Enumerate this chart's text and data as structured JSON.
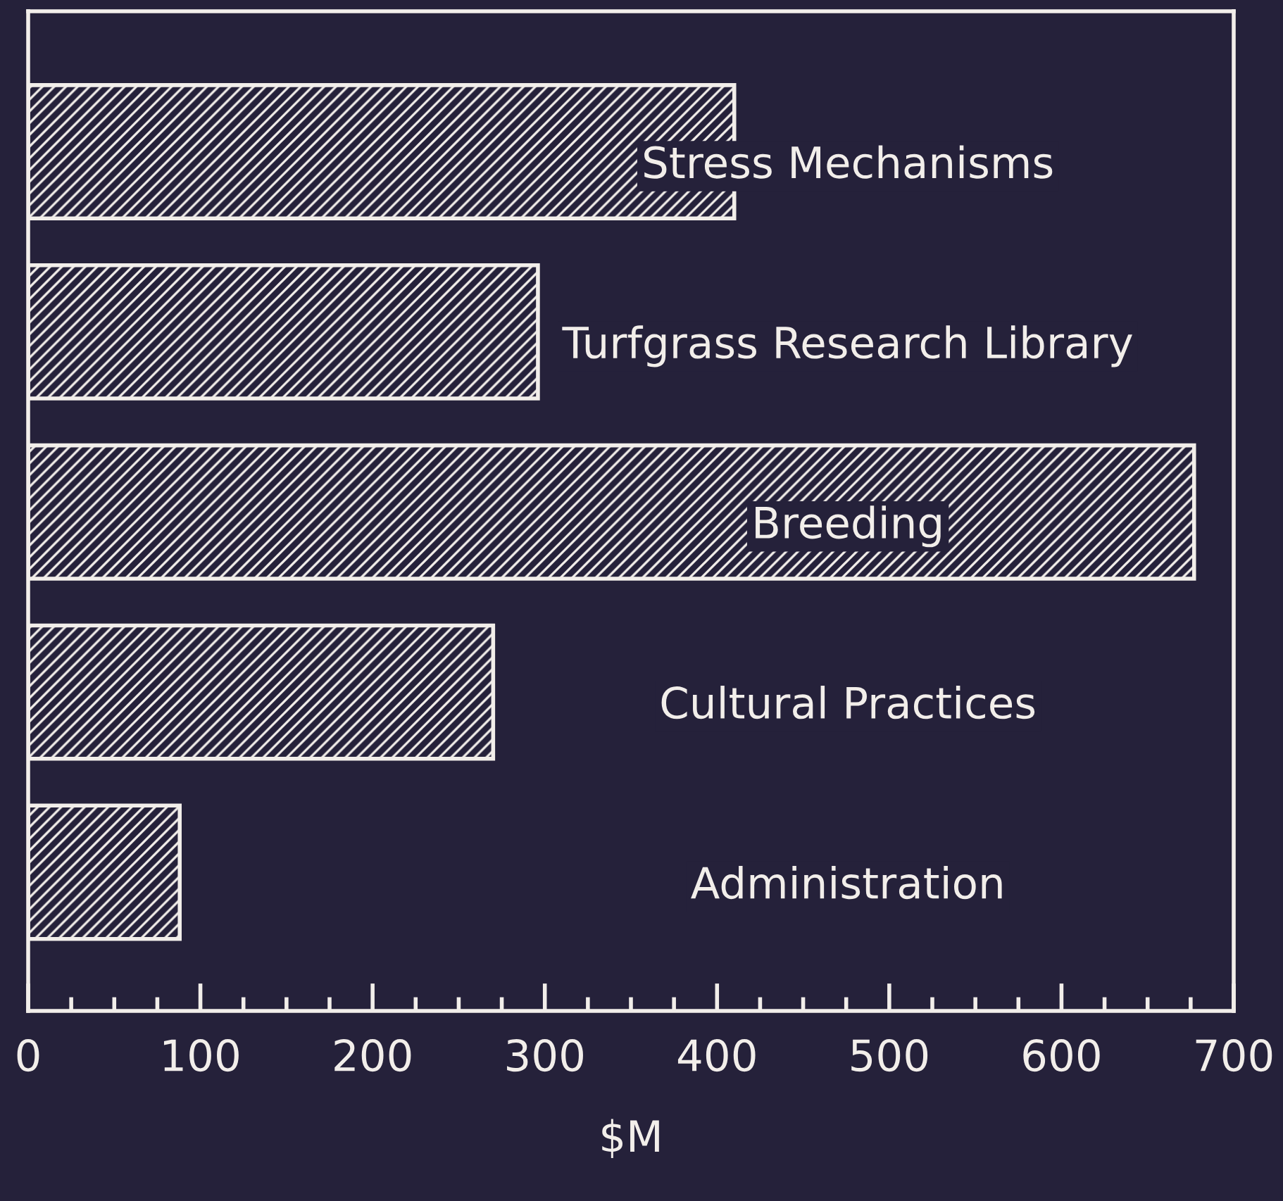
{
  "chart_data": {
    "type": "bar",
    "orientation": "horizontal",
    "categories": [
      "Stress Mechanisms",
      "Turfgrass Research Library",
      "Breeding",
      "Cultural Practices",
      "Administration"
    ],
    "values": [
      410,
      296,
      677,
      270,
      88
    ],
    "color": "#f2eeea",
    "xlim": [
      0,
      700
    ],
    "xticks": [
      0,
      100,
      200,
      300,
      400,
      500,
      600,
      700
    ],
    "xlabel": "$M",
    "grid": false
  }
}
